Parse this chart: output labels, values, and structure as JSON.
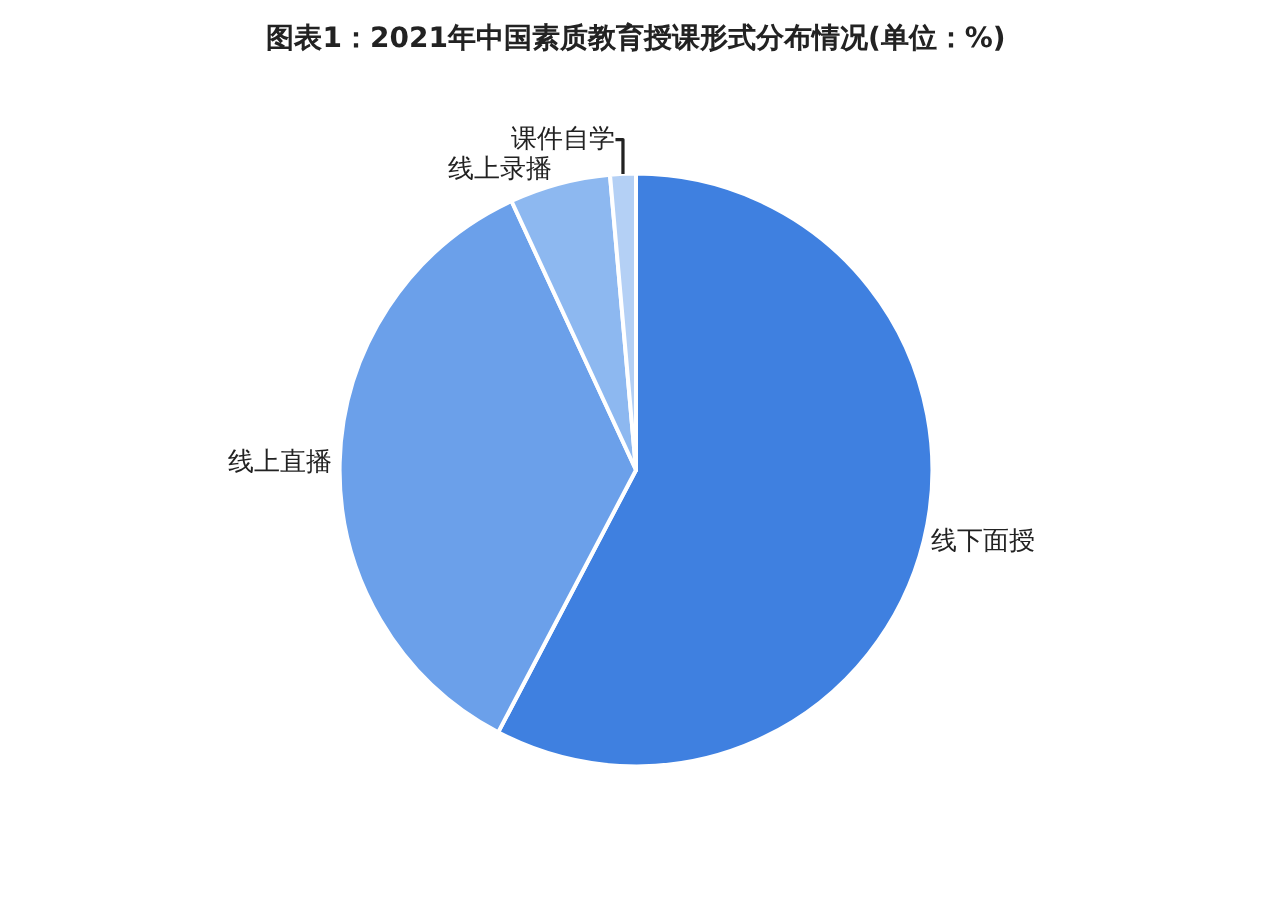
{
  "chart_data": {
    "type": "pie",
    "title": "图表1：2021年中国素质教育授课形式分布情况(单位：%)",
    "categories": [
      "线下面授",
      "线上直播",
      "线上录播",
      "课件自学"
    ],
    "values": [
      57.7,
      35.4,
      5.5,
      1.4
    ],
    "colors": [
      "#3f80e0",
      "#6ba0ea",
      "#8db8f0",
      "#b4d0f5"
    ],
    "legend": false
  }
}
